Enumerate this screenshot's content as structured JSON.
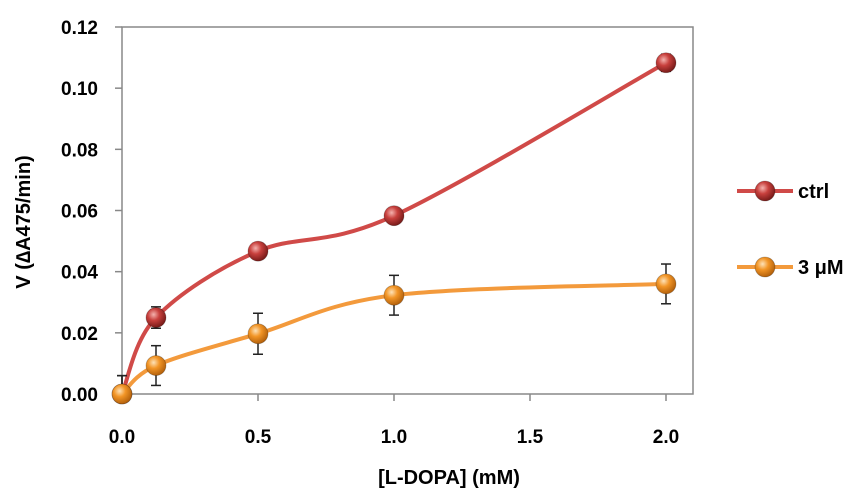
{
  "chart_data": {
    "type": "line",
    "title": "",
    "xlabel": "[L-DOPA] (mM)",
    "ylabel": "V (∆A475/min)",
    "xlim": [
      0,
      2.0
    ],
    "ylim": [
      0,
      0.12
    ],
    "x_ticks": [
      "0.0",
      "0.5",
      "1.0",
      "1.5",
      "2.0"
    ],
    "x_tick_values": [
      0,
      0.5,
      1.0,
      1.5,
      2.0
    ],
    "y_ticks": [
      "0.00",
      "0.02",
      "0.04",
      "0.06",
      "0.08",
      "0.10",
      "0.12"
    ],
    "y_tick_values": [
      0,
      0.02,
      0.04,
      0.06,
      0.08,
      0.1,
      0.12
    ],
    "grid": false,
    "legend_position": "right",
    "series": [
      {
        "name": "ctrl",
        "color": "#d04a48",
        "marker_color": "#c0392b",
        "x": [
          0,
          0.125,
          0.5,
          1.0,
          2.0
        ],
        "y": [
          0.0,
          0.025,
          0.0467,
          0.0583,
          0.1083
        ],
        "err": [
          0.006,
          0.0035,
          0.0012,
          0.0012,
          0.0028
        ]
      },
      {
        "name": "3 μM",
        "color": "#f39a3c",
        "marker_color": "#f0921f",
        "x": [
          0,
          0.125,
          0.5,
          1.0,
          2.0
        ],
        "y": [
          0.0,
          0.0093,
          0.0197,
          0.0323,
          0.036
        ],
        "err": [
          0.006,
          0.0065,
          0.0067,
          0.0065,
          0.0065
        ]
      }
    ]
  }
}
